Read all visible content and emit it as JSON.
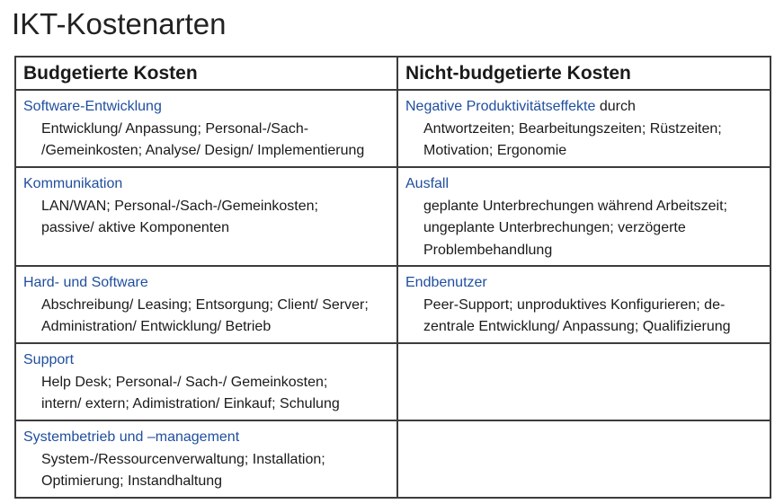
{
  "title": "IKT-Kostenarten",
  "headers": {
    "budgeted": "Budgetierte Kosten",
    "non_budgeted": "Nicht-budgetierte Kosten"
  },
  "budgeted": [
    {
      "category": "Software-Entwicklung",
      "lines": [
        "Entwicklung/ Anpassung; Personal-/Sach-",
        "/Gemeinkosten; Analyse/ Design/ Implementierung"
      ]
    },
    {
      "category": "Kommunikation",
      "lines": [
        "LAN/WAN; Personal-/Sach-/Gemeinkosten;",
        "passive/ aktive Komponenten"
      ]
    },
    {
      "category": "Hard- und Software",
      "lines": [
        "Abschreibung/ Leasing; Entsorgung; Client/ Server;",
        "Administration/ Entwicklung/ Betrieb"
      ]
    },
    {
      "category": "Support",
      "lines": [
        "Help Desk; Personal-/ Sach-/ Gemeinkosten;",
        "intern/ extern; Adimistration/ Einkauf; Schulung"
      ]
    },
    {
      "category": "Systembetrieb und –management",
      "lines": [
        "System-/Ressourcenverwaltung; Installation;",
        "Optimierung; Instandhaltung"
      ]
    }
  ],
  "non_budgeted": [
    {
      "category": "Negative Produktivitätseffekte",
      "suffix": " durch",
      "lines": [
        "Antwortzeiten; Bearbeitungszeiten; Rüstzeiten;",
        "Motivation;  Ergonomie"
      ]
    },
    {
      "category": "Ausfall",
      "lines": [
        "geplante Unterbrechungen während Arbeitszeit;",
        "ungeplante Unterbrechungen; verzögerte",
        "Problembehandlung"
      ]
    },
    {
      "category": "Endbenutzer",
      "lines": [
        "Peer-Support; unproduktives Konfigurieren; de-",
        "zentrale Entwicklung/ Anpassung; Qualifizierung"
      ]
    }
  ]
}
